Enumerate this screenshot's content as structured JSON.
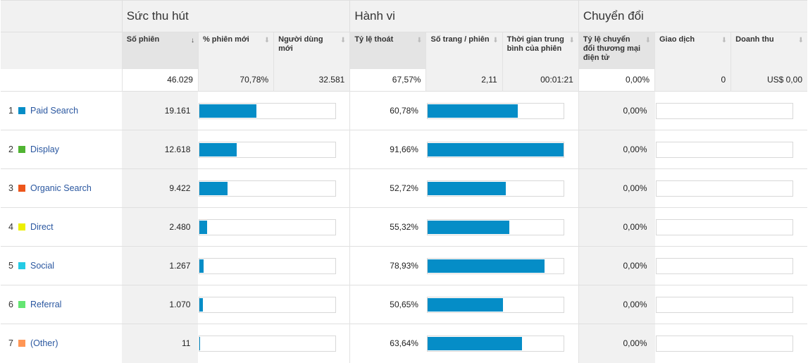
{
  "groups": [
    "Sức thu hút",
    "Hành vi",
    "Chuyển đổi"
  ],
  "columns": [
    {
      "label": "Số phiên",
      "arrow": "↓"
    },
    {
      "label": "% phiên mới",
      "arrow": "⬇"
    },
    {
      "label": "Người dùng mới",
      "arrow": "⬇"
    },
    {
      "label": "Tỷ lệ thoát",
      "arrow": "⬇"
    },
    {
      "label": "Số trang / phiên",
      "arrow": "⬇"
    },
    {
      "label": "Thời gian trung bình của phiên",
      "arrow": "⬇"
    },
    {
      "label": "Tỷ lệ chuyển đổi thương mại điện tử",
      "arrow": "⬇"
    },
    {
      "label": "Giao dịch",
      "arrow": "⬇"
    },
    {
      "label": "Doanh thu",
      "arrow": "⬇"
    }
  ],
  "totals": [
    "46.029",
    "70,78%",
    "32.581",
    "67,57%",
    "2,11",
    "00:01:21",
    "0,00%",
    "0",
    "US$ 0,00"
  ],
  "rows": [
    {
      "idx": "1",
      "name": "Paid Search",
      "color": "#058dc7",
      "sessions": "19.161",
      "sessions_pct": 41.6,
      "bounce": "60,78%",
      "bounce_frac": 0.6631,
      "conv": "0,00%"
    },
    {
      "idx": "2",
      "name": "Display",
      "color": "#50b432",
      "sessions": "12.618",
      "sessions_pct": 27.4,
      "bounce": "91,66%",
      "bounce_frac": 1.0,
      "conv": "0,00%"
    },
    {
      "idx": "3",
      "name": "Organic Search",
      "color": "#ed561b",
      "sessions": "9.422",
      "sessions_pct": 20.5,
      "bounce": "52,72%",
      "bounce_frac": 0.5752,
      "conv": "0,00%"
    },
    {
      "idx": "4",
      "name": "Direct",
      "color": "#edef00",
      "sessions": "2.480",
      "sessions_pct": 5.39,
      "bounce": "55,32%",
      "bounce_frac": 0.6035,
      "conv": "0,00%"
    },
    {
      "idx": "5",
      "name": "Social",
      "color": "#24cbe5",
      "sessions": "1.267",
      "sessions_pct": 2.75,
      "bounce": "78,93%",
      "bounce_frac": 0.8611,
      "conv": "0,00%"
    },
    {
      "idx": "6",
      "name": "Referral",
      "color": "#64e572",
      "sessions": "1.070",
      "sessions_pct": 2.32,
      "bounce": "50,65%",
      "bounce_frac": 0.5526,
      "conv": "0,00%"
    },
    {
      "idx": "7",
      "name": "(Other)",
      "color": "#ff9655",
      "sessions": "11",
      "sessions_pct": 0.02,
      "bounce": "63,64%",
      "bounce_frac": 0.6943,
      "conv": "0,00%"
    }
  ]
}
